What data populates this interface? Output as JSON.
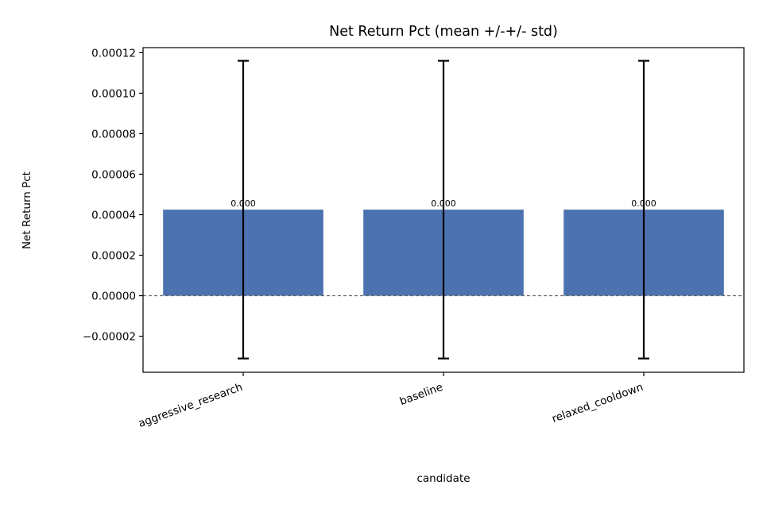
{
  "chart_data": {
    "type": "bar",
    "title": "Net Return Pct (mean +/-+/- std)",
    "xlabel": "candidate",
    "ylabel": "Net Return Pct",
    "categories": [
      "aggressive_research",
      "baseline",
      "relaxed_cooldown"
    ],
    "values": [
      4.25e-05,
      4.25e-05,
      4.25e-05
    ],
    "error_low": [
      -3.1e-05,
      -3.1e-05,
      -3.1e-05
    ],
    "error_high": [
      0.000116,
      0.000116,
      0.000116
    ],
    "data_labels": [
      "0.000",
      "0.000",
      "0.000"
    ],
    "ylim": [
      -3.78e-05,
      0.0001225
    ],
    "yticks": [
      -2e-05,
      0,
      2e-05,
      4e-05,
      6e-05,
      8e-05,
      0.0001,
      0.00012
    ],
    "ytick_labels": [
      "−0.00002",
      "0.00000",
      "0.00002",
      "0.00004",
      "0.00006",
      "0.00008",
      "0.00010",
      "0.00012"
    ],
    "reference_line": 0,
    "grid": false,
    "legend": "none",
    "bar_color": "#4c72b0",
    "error_color": "#000000",
    "reference_line_color": "#666666"
  }
}
